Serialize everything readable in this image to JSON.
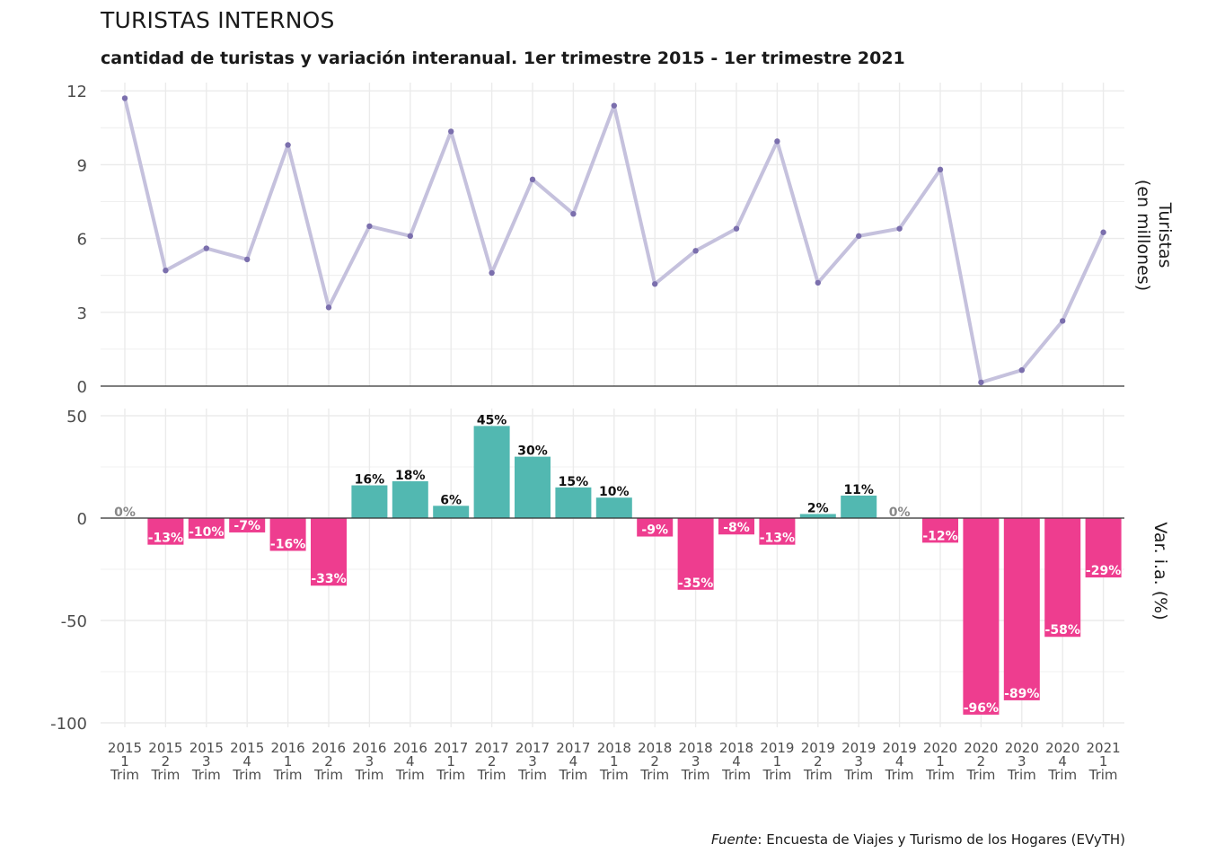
{
  "title": "TURISTAS INTERNOS",
  "subtitle": "cantidad de turistas y variación interanual. 1er trimestre 2015 - 1er trimestre 2021",
  "source": {
    "key": "Fuente",
    "text": ": Encuesta de Viajes y Turismo de los Hogares (EVyTH)"
  },
  "colors": {
    "line": "#c5c1dd",
    "point": "#7b6fad",
    "positive": "#52b8b1",
    "negative": "#ee3d8f",
    "zero_label": "#888888",
    "grid": "#ebebeb",
    "baseline": "#333333"
  },
  "chart_data": [
    {
      "type": "line",
      "ylabel": [
        "Turistas",
        "(en millones)"
      ],
      "ylim": [
        0,
        12
      ],
      "yticks": [
        0,
        3,
        6,
        9,
        12
      ],
      "grid": true,
      "categories": [
        [
          "2015",
          "1",
          "Trim"
        ],
        [
          "2015",
          "2",
          "Trim"
        ],
        [
          "2015",
          "3",
          "Trim"
        ],
        [
          "2015",
          "4",
          "Trim"
        ],
        [
          "2016",
          "1",
          "Trim"
        ],
        [
          "2016",
          "2",
          "Trim"
        ],
        [
          "2016",
          "3",
          "Trim"
        ],
        [
          "2016",
          "4",
          "Trim"
        ],
        [
          "2017",
          "1",
          "Trim"
        ],
        [
          "2017",
          "2",
          "Trim"
        ],
        [
          "2017",
          "3",
          "Trim"
        ],
        [
          "2017",
          "4",
          "Trim"
        ],
        [
          "2018",
          "1",
          "Trim"
        ],
        [
          "2018",
          "2",
          "Trim"
        ],
        [
          "2018",
          "3",
          "Trim"
        ],
        [
          "2018",
          "4",
          "Trim"
        ],
        [
          "2019",
          "1",
          "Trim"
        ],
        [
          "2019",
          "2",
          "Trim"
        ],
        [
          "2019",
          "3",
          "Trim"
        ],
        [
          "2019",
          "4",
          "Trim"
        ],
        [
          "2020",
          "1",
          "Trim"
        ],
        [
          "2020",
          "2",
          "Trim"
        ],
        [
          "2020",
          "3",
          "Trim"
        ],
        [
          "2020",
          "4",
          "Trim"
        ],
        [
          "2021",
          "1",
          "Trim"
        ]
      ],
      "values": [
        11.7,
        4.7,
        5.6,
        5.15,
        9.8,
        3.2,
        6.5,
        6.1,
        10.35,
        4.6,
        8.4,
        7.0,
        11.4,
        4.15,
        5.5,
        6.4,
        9.95,
        4.2,
        6.1,
        6.4,
        8.8,
        0.15,
        0.65,
        2.65,
        6.25
      ]
    },
    {
      "type": "bar",
      "ylabel": "Var. i.a. (%)",
      "ylim": [
        -100,
        50
      ],
      "yticks": [
        -100,
        -50,
        0,
        50
      ],
      "grid": true,
      "values": [
        0,
        -13,
        -10,
        -7,
        -16,
        -33,
        16,
        18,
        6,
        45,
        30,
        15,
        10,
        -9,
        -35,
        -8,
        -13,
        2,
        11,
        0,
        -12,
        -96,
        -89,
        -58,
        -29
      ],
      "labels": [
        "0%",
        "-13%",
        "-10%",
        "-7%",
        "-16%",
        "-33%",
        "16%",
        "18%",
        "6%",
        "45%",
        "30%",
        "15%",
        "10%",
        "-9%",
        "-35%",
        "-8%",
        "-13%",
        "2%",
        "11%",
        "0%",
        "-12%",
        "-96%",
        "-89%",
        "-58%",
        "-29%"
      ]
    }
  ]
}
